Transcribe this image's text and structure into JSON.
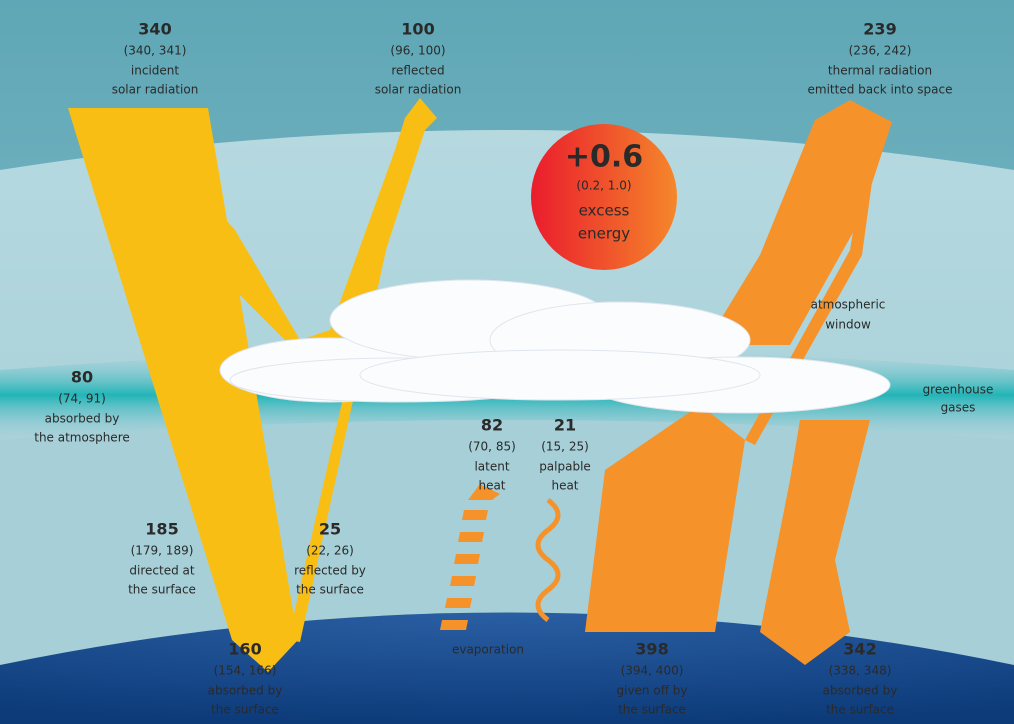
{
  "flows": [
    {
      "value": "340",
      "range": "(340, 341)",
      "label": [
        "incident",
        "solar radiation"
      ]
    },
    {
      "value": "100",
      "range": "(96, 100)",
      "label": [
        "reflected",
        "solar radiation"
      ]
    },
    {
      "value": "239",
      "range": "(236, 242)",
      "label": [
        "thermal radiation",
        "emitted back into space"
      ]
    },
    {
      "value": "80",
      "range": "(74, 91)",
      "label": [
        "absorbed by",
        "the atmosphere"
      ]
    },
    {
      "value": "185",
      "range": "(179, 189)",
      "label": [
        "directed at",
        "the surface"
      ]
    },
    {
      "value": "25",
      "range": "(22, 26)",
      "label": [
        "reflected by",
        "the surface"
      ]
    },
    {
      "value": "82",
      "range": "(70, 85)",
      "label": [
        "latent",
        "heat"
      ]
    },
    {
      "value": "21",
      "range": "(15, 25)",
      "label": [
        "palpable",
        "heat"
      ]
    },
    {
      "value": "160",
      "range": "(154, 166)",
      "label": [
        "absorbed by",
        "the surface"
      ]
    },
    {
      "value": "398",
      "range": "(394, 400)",
      "label": [
        "given off by",
        "the surface"
      ]
    },
    {
      "value": "342",
      "range": "(338, 348)",
      "label": [
        "absorbed by",
        "the surface"
      ]
    }
  ],
  "excess": {
    "value": "+0.6",
    "range": "(0.2, 1.0)",
    "label": [
      "excess",
      "energy"
    ]
  },
  "annotations": {
    "atmospheric_window": [
      "atmospheric",
      "window"
    ],
    "greenhouse_gases": [
      "greenhouse",
      "gases"
    ],
    "evaporation": "evaporation"
  }
}
